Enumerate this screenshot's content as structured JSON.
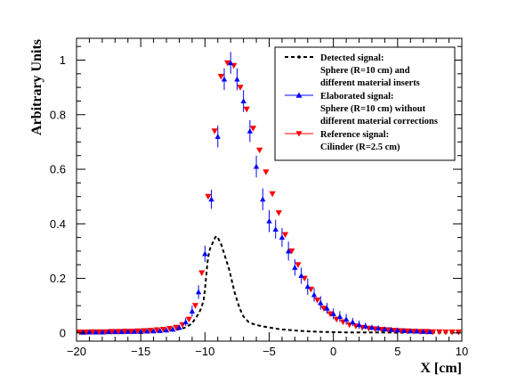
{
  "chart_data": {
    "type": "scatter",
    "xlabel": "X [cm]",
    "ylabel": "Arbitrary Units",
    "xlim": [
      -20,
      10
    ],
    "ylim": [
      -0.03,
      1.08
    ],
    "xticks": [
      -20,
      -15,
      -10,
      -5,
      0,
      5,
      10
    ],
    "xtick_labels": [
      "−20",
      "−15",
      "−10",
      "−5",
      "0",
      "5",
      "10"
    ],
    "yticks": [
      0,
      0.2,
      0.4,
      0.6,
      0.8,
      1
    ],
    "ytick_labels": [
      "0",
      "0.2",
      "0.4",
      "0.6",
      "0.8",
      "1"
    ],
    "grid": false,
    "legend_position": "top-right",
    "legend": [
      {
        "lines": [
          "Detected signal:",
          "Sphere (R=10 cm) and",
          "different material inserts"
        ],
        "style": "dashed-line",
        "color": "#000000"
      },
      {
        "lines": [
          "Elaborated signal:",
          "Sphere (R=10 cm) without",
          "different material corrections"
        ],
        "style": "triangle-up",
        "color": "#0000ff"
      },
      {
        "lines": [
          "Reference signal:",
          "Cilinder (R=2.5 cm)"
        ],
        "style": "triangle-down",
        "color": "#ff0000"
      }
    ],
    "series": [
      {
        "style": "dashed-line",
        "color": "#000000",
        "x": [
          -20,
          -19,
          -18,
          -17,
          -16,
          -15,
          -14,
          -13,
          -12.5,
          -12,
          -11.5,
          -11,
          -10.8,
          -10.5,
          -10.3,
          -10.1,
          -10,
          -9.9,
          -9.8,
          -9.7,
          -9.6,
          -9.5,
          -9.4,
          -9.3,
          -9.2,
          -9.1,
          -9.0,
          -8.9,
          -8.8,
          -8.7,
          -8.6,
          -8.5,
          -8.4,
          -8.3,
          -8.2,
          -8.1,
          -8.0,
          -7.9,
          -7.8,
          -7.7,
          -7.6,
          -7.5,
          -7.4,
          -7.3,
          -7.2,
          -7.1,
          -7.0,
          -6.9,
          -6.8,
          -6.7,
          -6.6,
          -6.5,
          -6.4,
          -6.3,
          -6.2,
          -6.1,
          -6.0,
          -5.8,
          -5.5,
          -5.0,
          -4.5,
          -4.0,
          -3.0,
          -2.0,
          -1.0,
          0,
          1,
          2,
          3,
          5,
          7,
          10
        ],
        "y": [
          0.003,
          0.003,
          0.003,
          0.004,
          0.004,
          0.005,
          0.006,
          0.008,
          0.01,
          0.014,
          0.02,
          0.035,
          0.05,
          0.07,
          0.09,
          0.12,
          0.16,
          0.21,
          0.26,
          0.29,
          0.31,
          0.32,
          0.33,
          0.34,
          0.35,
          0.355,
          0.35,
          0.34,
          0.33,
          0.32,
          0.305,
          0.29,
          0.275,
          0.26,
          0.245,
          0.23,
          0.21,
          0.19,
          0.17,
          0.15,
          0.135,
          0.12,
          0.105,
          0.09,
          0.08,
          0.07,
          0.06,
          0.055,
          0.05,
          0.045,
          0.04,
          0.038,
          0.036,
          0.034,
          0.032,
          0.031,
          0.03,
          0.027,
          0.024,
          0.02,
          0.016,
          0.013,
          0.009,
          0.006,
          0.004,
          0.003,
          0.002,
          0.002,
          0.002,
          0.001,
          0.001,
          0.001
        ]
      },
      {
        "style": "triangle-down",
        "color": "#ff0000",
        "x": [
          -19.75,
          -19.25,
          -18.75,
          -18.25,
          -17.75,
          -17.25,
          -16.75,
          -16.25,
          -15.75,
          -15.25,
          -14.75,
          -14.25,
          -13.75,
          -13.25,
          -12.75,
          -12.25,
          -11.75,
          -11.25,
          -10.75,
          -10.25,
          -9.75,
          -9.25,
          -8.75,
          -8.25,
          -7.75,
          -7.25,
          -6.75,
          -6.25,
          -5.75,
          -5.25,
          -4.75,
          -4.25,
          -3.75,
          -3.25,
          -2.75,
          -2.25,
          -1.75,
          -1.25,
          -0.75,
          -0.25,
          0.25,
          0.75,
          1.25,
          1.75,
          2.25,
          2.75,
          3.25,
          3.75,
          4.25,
          4.75,
          5.25,
          5.75,
          6.25,
          6.75,
          7.25,
          7.75,
          8.25,
          8.75,
          9.25,
          9.75
        ],
        "y": [
          0.003,
          0.003,
          0.004,
          0.004,
          0.004,
          0.005,
          0.005,
          0.006,
          0.006,
          0.007,
          0.008,
          0.009,
          0.011,
          0.013,
          0.016,
          0.02,
          0.03,
          0.05,
          0.1,
          0.22,
          0.5,
          0.74,
          0.94,
          0.99,
          0.98,
          0.9,
          0.82,
          0.75,
          0.67,
          0.59,
          0.51,
          0.44,
          0.36,
          0.3,
          0.25,
          0.2,
          0.16,
          0.12,
          0.09,
          0.07,
          0.05,
          0.04,
          0.03,
          0.025,
          0.02,
          0.017,
          0.015,
          0.013,
          0.011,
          0.009,
          0.008,
          0.007,
          0.006,
          0.005,
          0.005,
          0.004,
          0.004,
          0.003,
          0.003,
          0.003
        ]
      },
      {
        "style": "triangle-up-errorbars",
        "color": "#0000ff",
        "x": [
          -19.5,
          -19.0,
          -18.5,
          -18.0,
          -17.5,
          -17.0,
          -16.5,
          -16.0,
          -15.5,
          -15.0,
          -14.5,
          -14.0,
          -13.5,
          -13.0,
          -12.5,
          -12.0,
          -11.5,
          -11.0,
          -10.5,
          -10.0,
          -9.5,
          -9.0,
          -8.5,
          -8.0,
          -7.5,
          -7.0,
          -6.5,
          -6.0,
          -5.5,
          -5.0,
          -4.5,
          -4.0,
          -3.5,
          -3.0,
          -2.5,
          -2.0,
          -1.5,
          -1.0,
          -0.5,
          0.0,
          0.5,
          1.0,
          1.5,
          2.0,
          2.5,
          3.0,
          3.5,
          4.0,
          4.5,
          5.0,
          5.5,
          6.0,
          6.5,
          7.0,
          7.5
        ],
        "y": [
          0.002,
          0.003,
          0.003,
          0.003,
          0.004,
          0.004,
          0.004,
          0.005,
          0.005,
          0.005,
          0.006,
          0.007,
          0.008,
          0.01,
          0.013,
          0.02,
          0.04,
          0.08,
          0.15,
          0.29,
          0.49,
          0.72,
          0.93,
          0.99,
          0.93,
          0.85,
          0.74,
          0.61,
          0.49,
          0.41,
          0.38,
          0.35,
          0.3,
          0.24,
          0.21,
          0.17,
          0.14,
          0.11,
          0.09,
          0.07,
          0.06,
          0.05,
          0.04,
          0.03,
          0.025,
          0.02,
          0.017,
          0.014,
          0.012,
          0.01,
          0.008,
          0.007,
          0.006,
          0.005,
          0.004
        ],
        "err": [
          0.003,
          0.003,
          0.003,
          0.003,
          0.003,
          0.003,
          0.004,
          0.004,
          0.004,
          0.004,
          0.005,
          0.005,
          0.006,
          0.007,
          0.008,
          0.01,
          0.015,
          0.02,
          0.025,
          0.03,
          0.035,
          0.04,
          0.04,
          0.04,
          0.04,
          0.04,
          0.04,
          0.04,
          0.04,
          0.04,
          0.035,
          0.035,
          0.035,
          0.03,
          0.03,
          0.03,
          0.025,
          0.025,
          0.02,
          0.02,
          0.02,
          0.02,
          0.015,
          0.015,
          0.012,
          0.01,
          0.01,
          0.008,
          0.008,
          0.007,
          0.006,
          0.006,
          0.005,
          0.005,
          0.004
        ]
      }
    ]
  }
}
